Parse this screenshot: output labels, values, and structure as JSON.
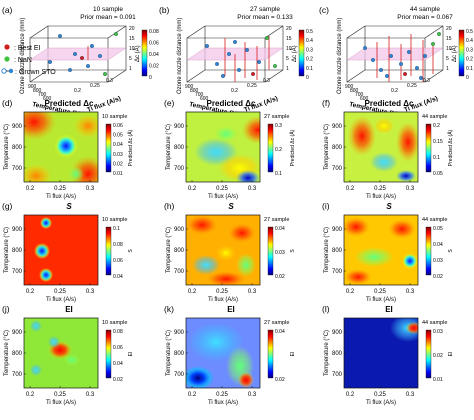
{
  "legend": {
    "items": [
      {
        "label": ": Best EI",
        "color": "#d11a1a"
      },
      {
        "label": ": NaN",
        "color": "#3cc43c"
      },
      {
        "label": ": Grown STO",
        "color": "#2f86d6"
      }
    ]
  },
  "panels_3d": [
    {
      "letter": "(a)",
      "sample": "10 sample",
      "prior": "Prior mean = 0.091",
      "zlabel": "Ozone nozzle distance (mm)",
      "xlabel": "Ti flux (A/s)",
      "ylabel": "Temperature (°C)",
      "cbar_label": "Δc (Å)",
      "cbar_ticks": [
        "0.08",
        "0.06",
        "0.04",
        "0.02",
        "0"
      ],
      "zticks": [
        "20",
        "15",
        "10",
        "5",
        "1"
      ],
      "xticks": [
        "0.2",
        "0.25",
        "0.3"
      ],
      "yticks": [
        "900",
        "800",
        "700",
        "600"
      ]
    },
    {
      "letter": "(b)",
      "sample": "27 sample",
      "prior": "Prior mean = 0.133",
      "zlabel": "Ozone nozzle distance (mm)",
      "xlabel": "Ti flux (A/s)",
      "ylabel": "Temperature (°C)",
      "cbar_label": "Δc (Å)",
      "cbar_ticks": [
        "0.5",
        "0.4",
        "0.3",
        "0.2",
        "0.1",
        "0"
      ],
      "zticks": [
        "20",
        "15",
        "10",
        "5",
        "1"
      ],
      "xticks": [
        "0.2",
        "0.25",
        "0.3"
      ],
      "yticks": [
        "900",
        "800",
        "700",
        "600"
      ]
    },
    {
      "letter": "(c)",
      "sample": "44 sample",
      "prior": "Prior mean = 0.067",
      "zlabel": "Ozone nozzle distance (mm)",
      "xlabel": "Ti flux (A/s)",
      "ylabel": "Temperature (°C)",
      "cbar_label": "Δc (Å)",
      "cbar_ticks": [
        "0.5",
        "0.4",
        "0.3",
        "0.2",
        "0.1",
        "0"
      ],
      "zticks": [
        "20",
        "15",
        "10",
        "5",
        "1"
      ],
      "xticks": [
        "0.2",
        "0.25",
        "0.3"
      ],
      "yticks": [
        "900",
        "800",
        "700",
        "600"
      ]
    }
  ],
  "rows": [
    {
      "title": "Predicted Δc",
      "panels": [
        {
          "letter": "(d)",
          "sample": "10 sample",
          "cbar_label": "Predicted Δc (Å)",
          "cbar_ticks": [
            "0.06",
            "0.05",
            "0.04",
            "0.03",
            "0.02",
            "0.01"
          ]
        },
        {
          "letter": "(e)",
          "sample": "27 sample",
          "cbar_label": "Predicted Δc (Å)",
          "cbar_ticks": [
            "0.3",
            "0.2",
            "0.1"
          ]
        },
        {
          "letter": "(f)",
          "sample": "44 sample",
          "cbar_label": "Predicted Δc (Å)",
          "cbar_ticks": [
            "0.2",
            "0.15",
            "0.1",
            "0.05"
          ]
        }
      ]
    },
    {
      "title": "S",
      "panels": [
        {
          "letter": "(g)",
          "sample": "10 sample",
          "cbar_label": "S",
          "cbar_ticks": [
            "0.1",
            "0.08",
            "0.06",
            "0.04"
          ]
        },
        {
          "letter": "(h)",
          "sample": "27 sample",
          "cbar_label": "S",
          "cbar_ticks": [
            "0.04",
            "0.03",
            "0.02"
          ]
        },
        {
          "letter": "(i)",
          "sample": "44 sample",
          "cbar_label": "S",
          "cbar_ticks": [
            "0.05",
            "0.04",
            "0.03",
            "0.02"
          ]
        }
      ]
    },
    {
      "title": "EI",
      "panels": [
        {
          "letter": "(j)",
          "sample": "10 sample",
          "cbar_label": "EI",
          "cbar_ticks": [
            "0.08",
            "0.06",
            "0.04",
            "0.02"
          ]
        },
        {
          "letter": "(k)",
          "sample": "27 sample",
          "cbar_label": "EI",
          "cbar_ticks": [
            "0.04",
            "0.02"
          ]
        },
        {
          "letter": "(l)",
          "sample": "44 sample",
          "cbar_label": "EI",
          "cbar_ticks": [
            "0.03",
            "0.02",
            "0.01"
          ]
        }
      ]
    }
  ],
  "axes": {
    "ylabel": "Temperature (°C)",
    "xlabel": "Ti flux (A/s)",
    "yticks": [
      "900",
      "800",
      "700"
    ],
    "xticks": [
      "0.2",
      "0.25",
      "0.3"
    ]
  },
  "colors": {
    "jet": [
      "#00007f",
      "#0000ff",
      "#007fff",
      "#00ffff",
      "#7fff7f",
      "#ffff00",
      "#ff7f00",
      "#ff0000",
      "#7f0000"
    ],
    "plane": "#f3c8ea",
    "drop": "#d33"
  }
}
